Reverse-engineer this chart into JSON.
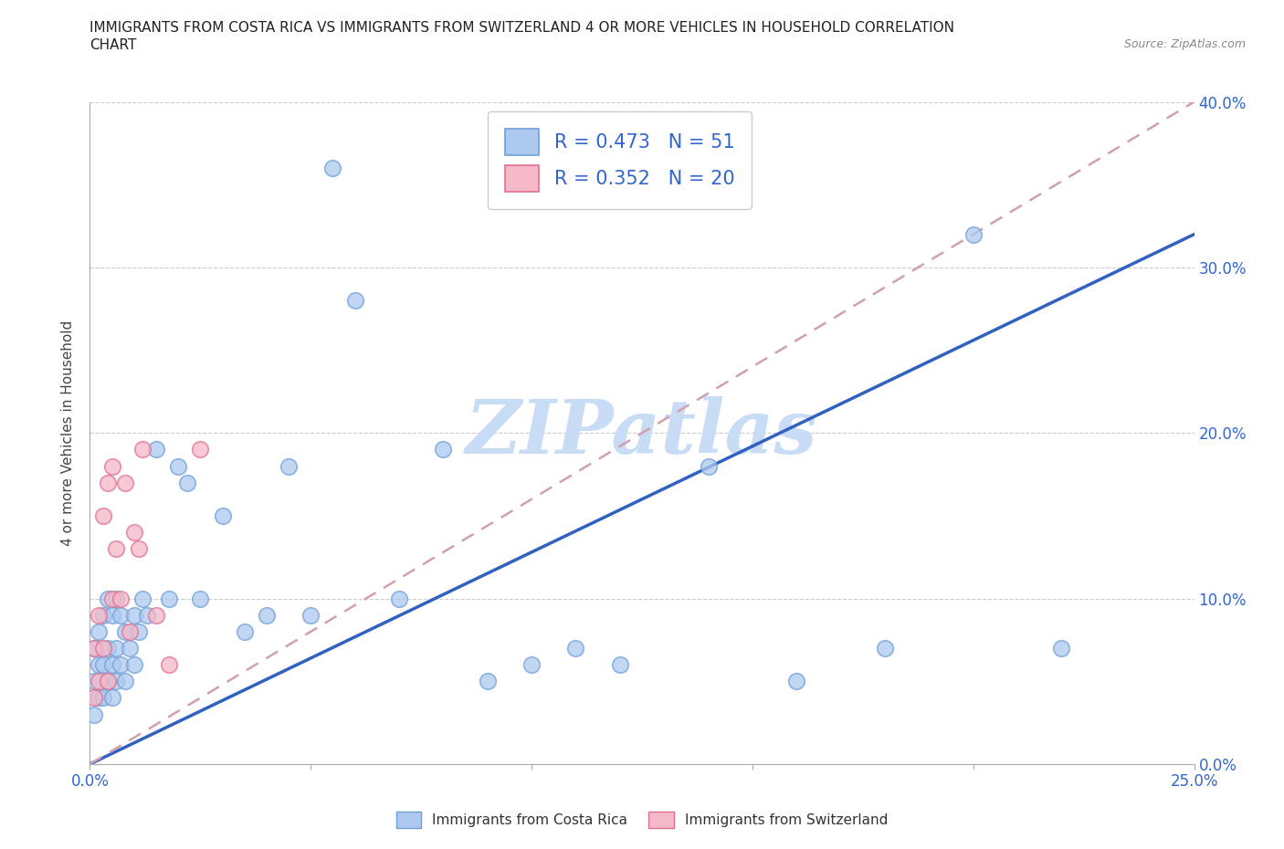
{
  "title_line1": "IMMIGRANTS FROM COSTA RICA VS IMMIGRANTS FROM SWITZERLAND 4 OR MORE VEHICLES IN HOUSEHOLD CORRELATION",
  "title_line2": "CHART",
  "source_text": "Source: ZipAtlas.com",
  "ylabel": "4 or more Vehicles in Household",
  "xlim": [
    0.0,
    0.25
  ],
  "ylim": [
    0.0,
    0.4
  ],
  "x_ticks": [
    0.0,
    0.05,
    0.1,
    0.15,
    0.2,
    0.25
  ],
  "y_ticks": [
    0.0,
    0.1,
    0.2,
    0.3,
    0.4
  ],
  "x_tick_labels": [
    "0.0%",
    "",
    "",
    "",
    "",
    "25.0%"
  ],
  "y_tick_labels_right": [
    "0.0%",
    "10.0%",
    "20.0%",
    "30.0%",
    "40.0%"
  ],
  "costa_rica_fill": "#adc9ef",
  "costa_rica_edge": "#6fa0d8",
  "switzerland_fill": "#f5b8c8",
  "switzerland_edge": "#e07090",
  "trend_cr_color": "#3060c0",
  "trend_sw_color": "#e08090",
  "trend_sw_dash_color": "#d0a0b0",
  "legend_R_cr": "0.473",
  "legend_N_cr": "51",
  "legend_R_sw": "0.352",
  "legend_N_sw": "20",
  "watermark": "ZIPatlas",
  "watermark_color": "#c8ddf5",
  "legend_label_cr": "Immigrants from Costa Rica",
  "legend_label_sw": "Immigrants from Switzerland",
  "costa_rica_x": [
    0.001,
    0.001,
    0.001,
    0.002,
    0.002,
    0.002,
    0.003,
    0.003,
    0.003,
    0.004,
    0.004,
    0.004,
    0.005,
    0.005,
    0.005,
    0.006,
    0.006,
    0.006,
    0.007,
    0.007,
    0.008,
    0.008,
    0.009,
    0.01,
    0.01,
    0.011,
    0.012,
    0.013,
    0.015,
    0.018,
    0.02,
    0.022,
    0.025,
    0.03,
    0.035,
    0.04,
    0.045,
    0.05,
    0.055,
    0.06,
    0.07,
    0.08,
    0.09,
    0.1,
    0.11,
    0.12,
    0.14,
    0.16,
    0.18,
    0.2,
    0.22
  ],
  "costa_rica_y": [
    0.03,
    0.05,
    0.07,
    0.04,
    0.06,
    0.08,
    0.04,
    0.06,
    0.09,
    0.05,
    0.07,
    0.1,
    0.04,
    0.06,
    0.09,
    0.05,
    0.07,
    0.1,
    0.06,
    0.09,
    0.05,
    0.08,
    0.07,
    0.06,
    0.09,
    0.08,
    0.1,
    0.09,
    0.19,
    0.1,
    0.18,
    0.17,
    0.1,
    0.15,
    0.08,
    0.09,
    0.18,
    0.09,
    0.36,
    0.28,
    0.1,
    0.19,
    0.05,
    0.06,
    0.07,
    0.06,
    0.18,
    0.05,
    0.07,
    0.32,
    0.07
  ],
  "switzerland_x": [
    0.001,
    0.001,
    0.002,
    0.002,
    0.003,
    0.003,
    0.004,
    0.004,
    0.005,
    0.005,
    0.006,
    0.007,
    0.008,
    0.009,
    0.01,
    0.011,
    0.012,
    0.015,
    0.018,
    0.025
  ],
  "switzerland_y": [
    0.04,
    0.07,
    0.05,
    0.09,
    0.07,
    0.15,
    0.05,
    0.17,
    0.1,
    0.18,
    0.13,
    0.1,
    0.17,
    0.08,
    0.14,
    0.13,
    0.19,
    0.09,
    0.06,
    0.19
  ]
}
